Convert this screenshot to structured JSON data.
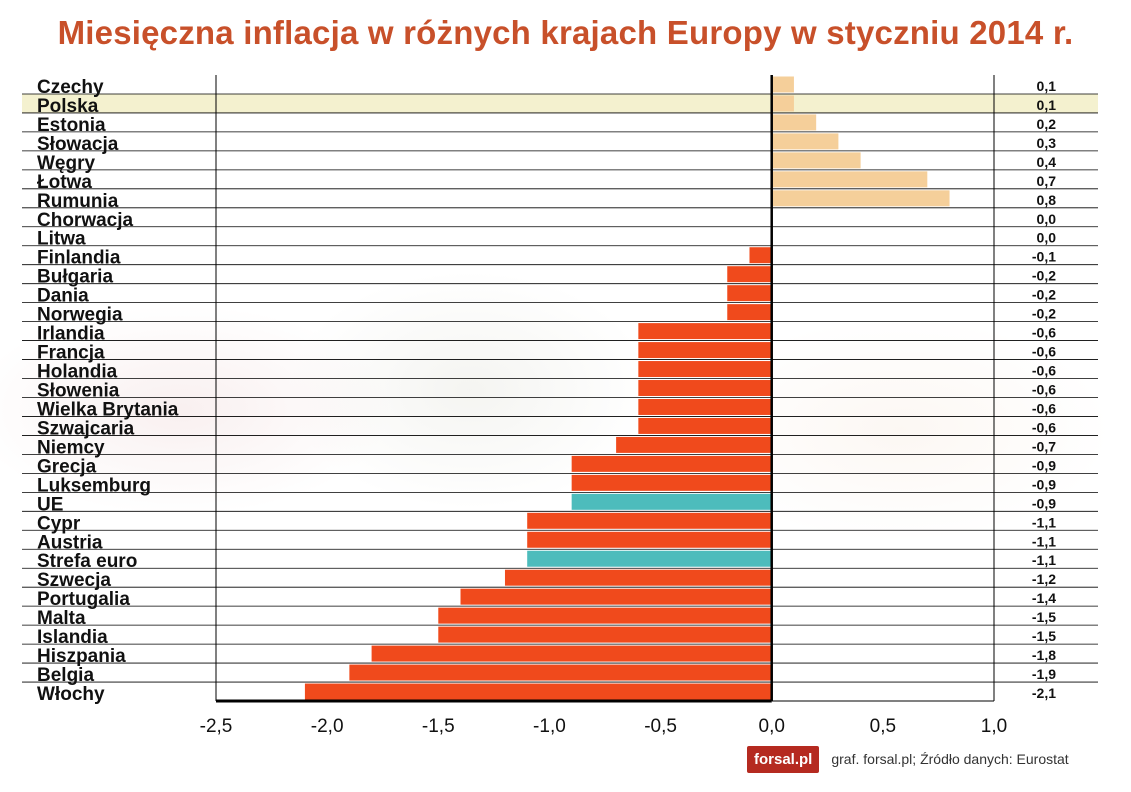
{
  "title": "Miesięczna inflacja w różnych krajach Europy w styczniu 2014 r.",
  "logo_text": "forsal.pl",
  "source": "graf. forsal.pl; Źródło danych: Eurostat",
  "chart_data": {
    "type": "bar",
    "orientation": "horizontal",
    "title": "Miesięczna inflacja w różnych krajach Europy w styczniu 2014 r.",
    "xlim": [
      -2.5,
      1.0
    ],
    "xticks": [
      "-2,5",
      "-2,0",
      "-1,5",
      "-1,0",
      "-0,5",
      "0,0",
      "0,5",
      "1,0"
    ],
    "xtick_values": [
      -2.5,
      -2.0,
      -1.5,
      -1.0,
      -0.5,
      0.0,
      0.5,
      1.0
    ],
    "grid": "horizontal rows",
    "highlight_row": "Polska",
    "colors": {
      "positive": "#f5cf9a",
      "negative": "#f04a1c",
      "aggregate": "#4dbcbc",
      "highlight_row": "#f4f1cf",
      "title": "#c8502a"
    },
    "categories": [
      "Czechy",
      "Polska",
      "Estonia",
      "Słowacja",
      "Węgry",
      "Łotwa",
      "Rumunia",
      "Chorwacja",
      "Litwa",
      "Finlandia",
      "Bułgaria",
      "Dania",
      "Norwegia",
      "Irlandia",
      "Francja",
      "Holandia",
      "Słowenia",
      "Wielka Brytania",
      "Szwajcaria",
      "Niemcy",
      "Grecja",
      "Luksemburg",
      "UE",
      "Cypr",
      "Austria",
      "Strefa euro",
      "Szwecja",
      "Portugalia",
      "Malta",
      "Islandia",
      "Hiszpania",
      "Belgia",
      "Włochy"
    ],
    "values": [
      0.1,
      0.1,
      0.2,
      0.3,
      0.4,
      0.7,
      0.8,
      0.0,
      0.0,
      -0.1,
      -0.2,
      -0.2,
      -0.2,
      -0.6,
      -0.6,
      -0.6,
      -0.6,
      -0.6,
      -0.6,
      -0.7,
      -0.9,
      -0.9,
      -0.9,
      -1.1,
      -1.1,
      -1.1,
      -1.2,
      -1.4,
      -1.5,
      -1.5,
      -1.8,
      -1.9,
      -2.1
    ],
    "value_labels": [
      "0,1",
      "0,1",
      "0,2",
      "0,3",
      "0,4",
      "0,7",
      "0,8",
      "0,0",
      "0,0",
      "-0,1",
      "-0,2",
      "-0,2",
      "-0,2",
      "-0,6",
      "-0,6",
      "-0,6",
      "-0,6",
      "-0,6",
      "-0,6",
      "-0,7",
      "-0,9",
      "-0,9",
      "-0,9",
      "-1,1",
      "-1,1",
      "-1,1",
      "-1,2",
      "-1,4",
      "-1,5",
      "-1,5",
      "-1,8",
      "-1,9",
      "-2,1"
    ],
    "aggregates": [
      "UE",
      "Strefa euro"
    ]
  }
}
